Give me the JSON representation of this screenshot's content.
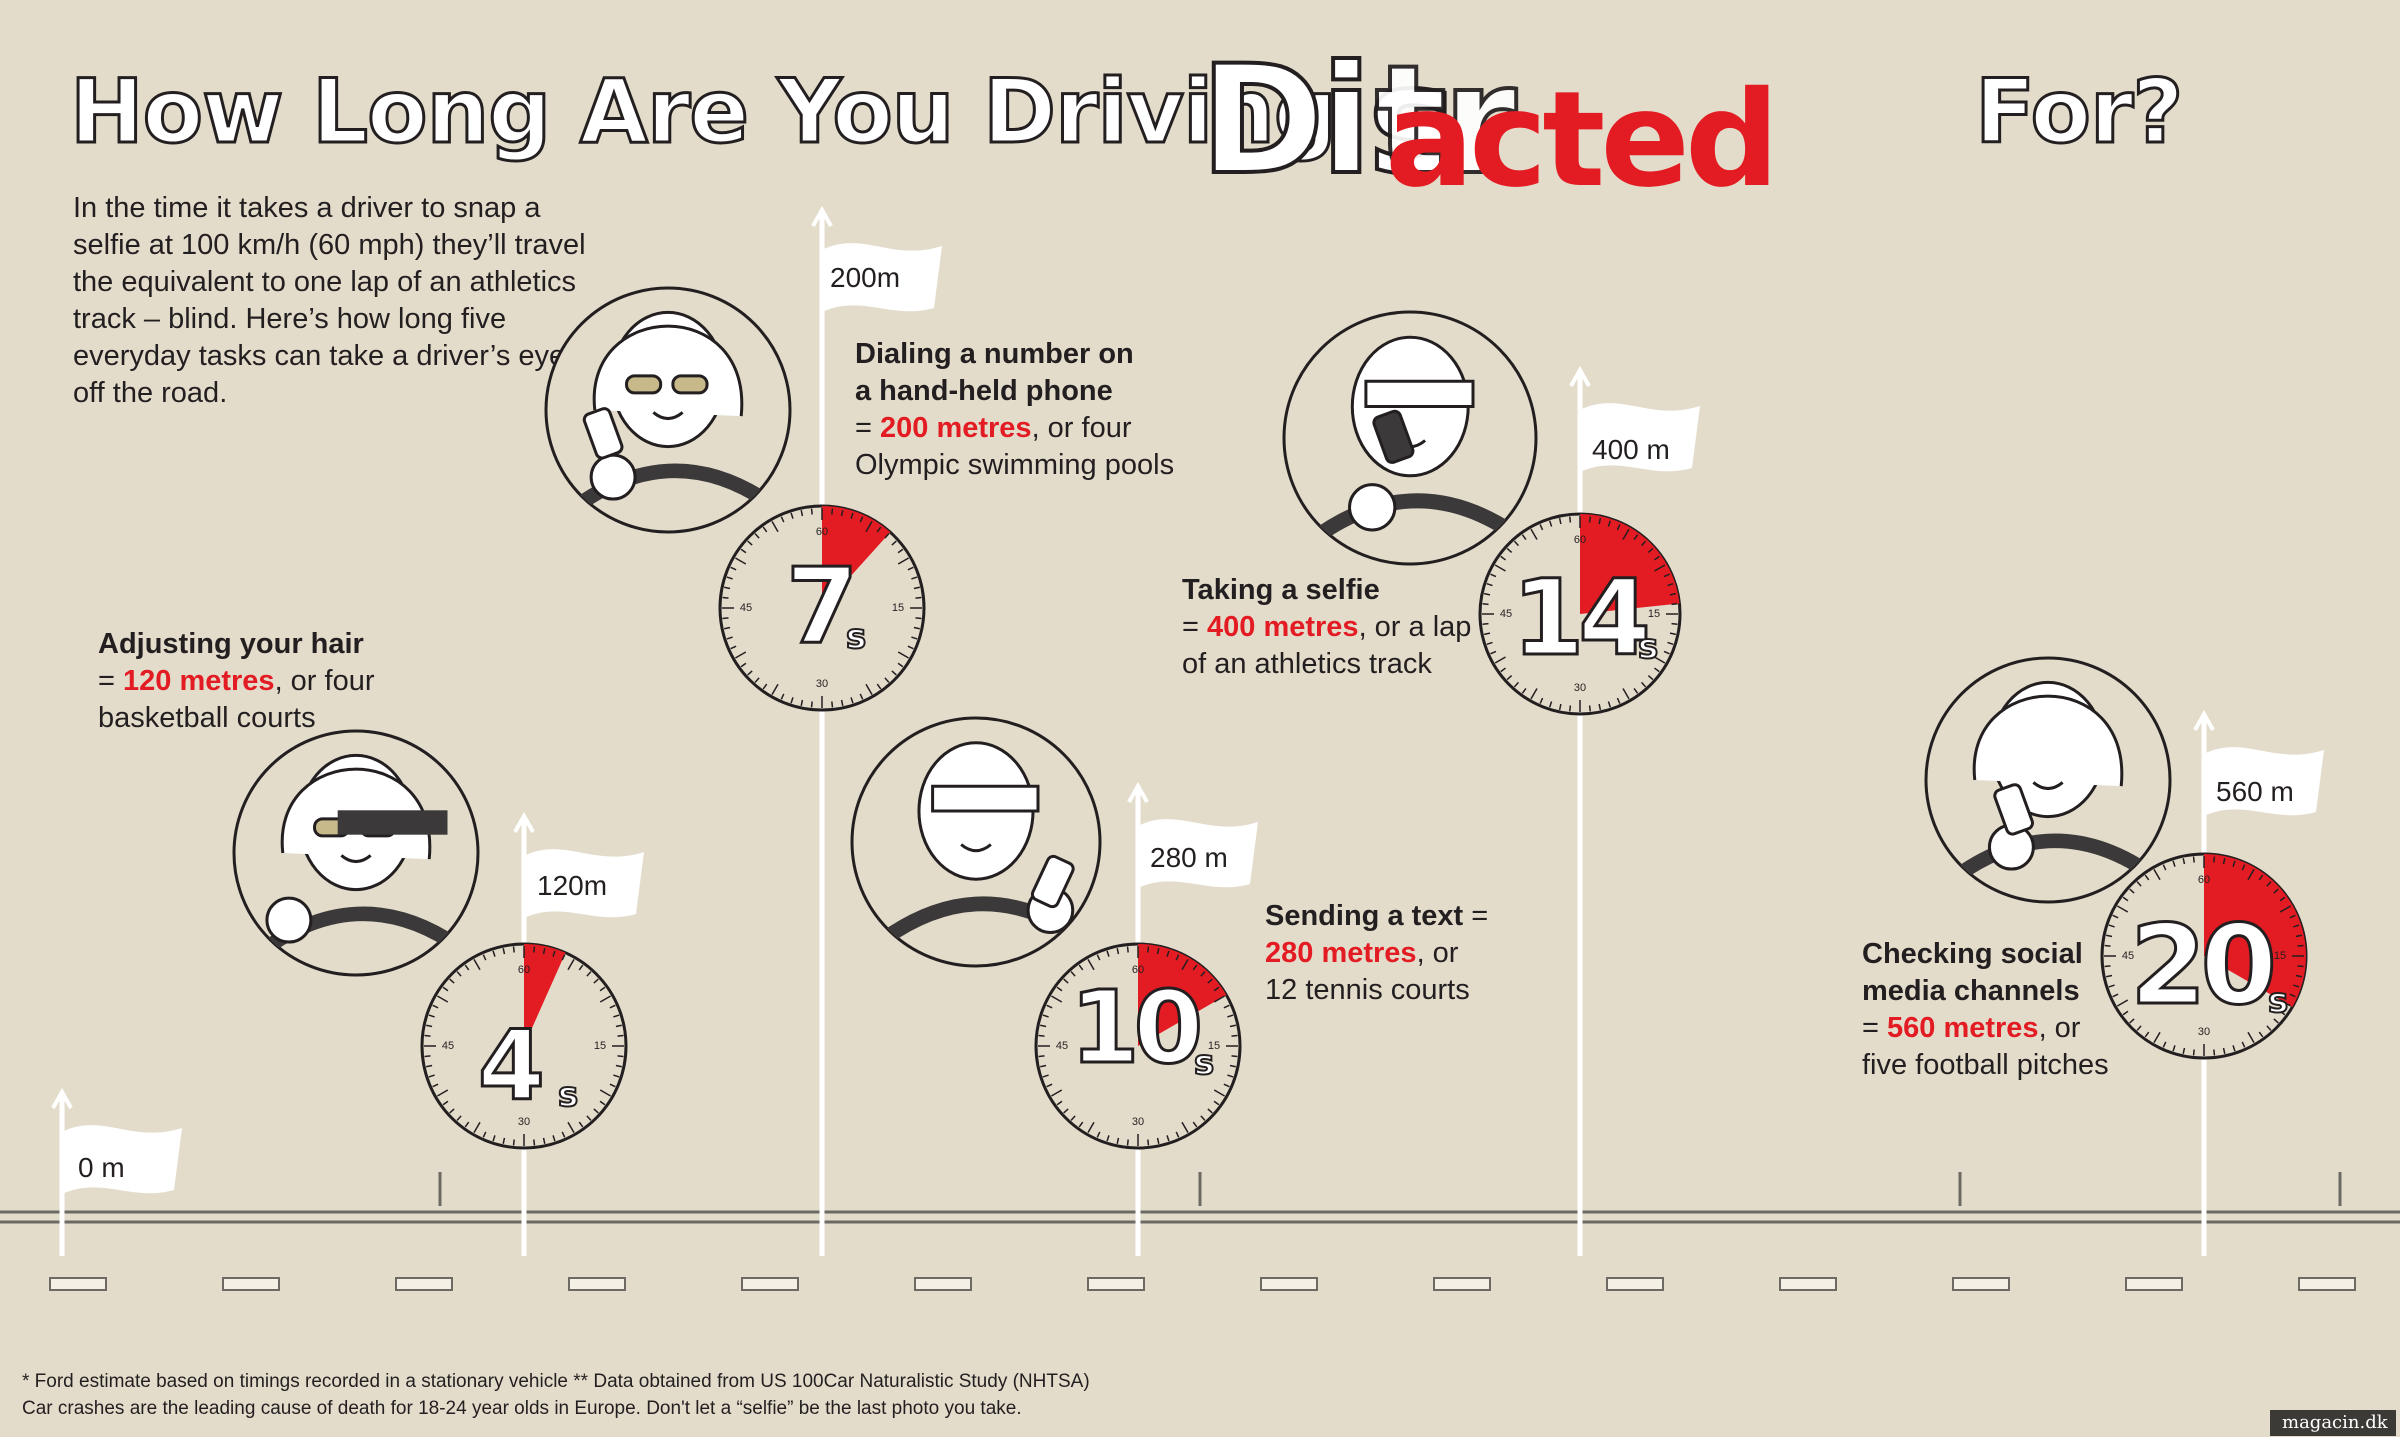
{
  "title": {
    "part1": "How Long Are You Driving",
    "dis": "Dis",
    "tr": "tr",
    "acted": "acted",
    "part2": "For?"
  },
  "intro": "In the time it takes a driver to snap a selfie at 100 km/h (60 mph) they’ll travel the equivalent to one lap of an athletics track – blind. Here’s how long five everyday tasks can take a driver’s eyes off the road.",
  "start_flag": "0 m",
  "tasks": [
    {
      "title": "Adjusting your hair",
      "title2": "",
      "prefix": "= ",
      "distance": "120 metres",
      "suffix": ", or four",
      "line2": "basketball courts",
      "flag": "120m",
      "seconds": "4",
      "unit": "s",
      "icon": "woman-glasses-mirror-icon"
    },
    {
      "title": "Dialing a number on",
      "title2": "a hand-held phone",
      "prefix": "= ",
      "distance": "200 metres",
      "suffix": ", or four",
      "line2": "Olympic swimming pools",
      "flag": "200m",
      "seconds": "7",
      "unit": "s",
      "icon": "woman-phone-call-icon"
    },
    {
      "title": "Sending a text",
      "title2": "",
      "prefix": " = ",
      "distance": "280 metres",
      "suffix": ", or",
      "line2": "12 tennis courts",
      "flag": "280 m",
      "seconds": "10",
      "unit": "s",
      "icon": "man-texting-icon"
    },
    {
      "title": "Taking a selfie",
      "title2": "",
      "prefix": "= ",
      "distance": "400 metres",
      "suffix": ", or a lap",
      "line2": "of an athletics track",
      "flag": "400 m",
      "seconds": "14",
      "unit": "s",
      "icon": "man-selfie-icon"
    },
    {
      "title": "Checking social",
      "title2": "media channels",
      "prefix": "= ",
      "distance": "560 metres",
      "suffix": ", or",
      "line2": "five football pitches",
      "flag": "560 m",
      "seconds": "20",
      "unit": "s",
      "icon": "woman-social-media-icon"
    }
  ],
  "dial_labels": {
    "top": "60",
    "right": "15",
    "bottom": "30",
    "left": "45"
  },
  "footnote": {
    "line1": "* Ford estimate based on timings recorded in a stationary vehicle ** Data obtained from US 100Car Naturalistic Study (NHTSA)",
    "line2": "Car crashes are the leading cause of death for 18-24 year olds in Europe. Don't let a “selfie” be the last photo you take."
  },
  "watermark": "magacin.dk",
  "colors": {
    "background": "#e3dccb",
    "accent": "#e31b23",
    "ink": "#231f20",
    "white": "#ffffff"
  }
}
